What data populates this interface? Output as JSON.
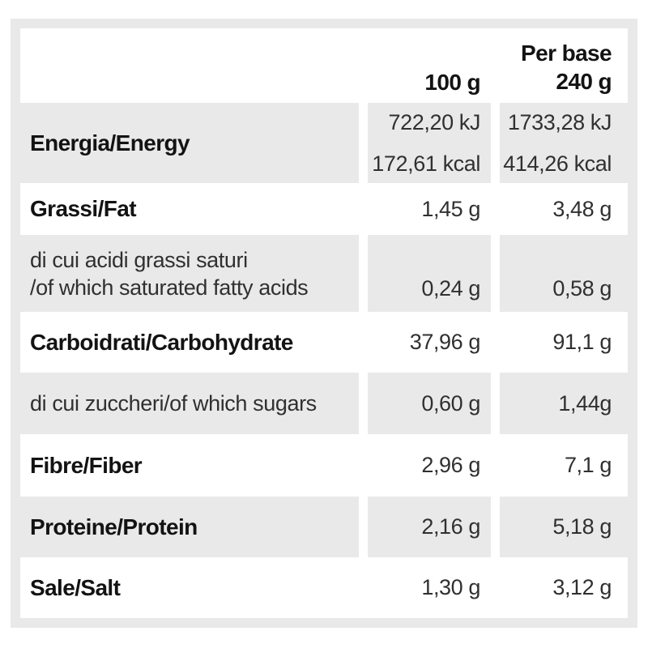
{
  "nutrition": {
    "header": {
      "per_base": "Per base",
      "col1": "100 g",
      "col2": "240 g"
    },
    "rows": [
      {
        "name": "energy",
        "label": "Energia/Energy",
        "col1": [
          "722,20 kJ",
          "172,61 kcal"
        ],
        "col2": [
          "1733,28 kJ",
          "414,26 kcal"
        ]
      },
      {
        "name": "fat",
        "label": "Grassi/Fat",
        "col1": "1,45 g",
        "col2": "3,48 g"
      },
      {
        "name": "saturated-fat",
        "label_lines": [
          "di cui acidi grassi saturi",
          "/of which saturated fatty acids"
        ],
        "col1": "0,24 g",
        "col2": "0,58 g"
      },
      {
        "name": "carbohydrate",
        "label": "Carboidrati/Carbohydrate",
        "col1": "37,96 g",
        "col2": "91,1 g"
      },
      {
        "name": "sugars",
        "label": "di cui zuccheri/of which sugars",
        "col1": "0,60 g",
        "col2": "1,44g"
      },
      {
        "name": "fiber",
        "label": "Fibre/Fiber",
        "col1": "2,96 g",
        "col2": "7,1 g"
      },
      {
        "name": "protein",
        "label": "Proteine/Protein",
        "col1": "2,16 g",
        "col2": "5,18 g"
      },
      {
        "name": "salt",
        "label": "Sale/Salt",
        "col1": "1,30 g",
        "col2": "3,12 g"
      }
    ],
    "colors": {
      "row_shade": "#e9e9e9",
      "frame": "#e9e9e9",
      "text": "#131313",
      "background": "#ffffff"
    }
  }
}
